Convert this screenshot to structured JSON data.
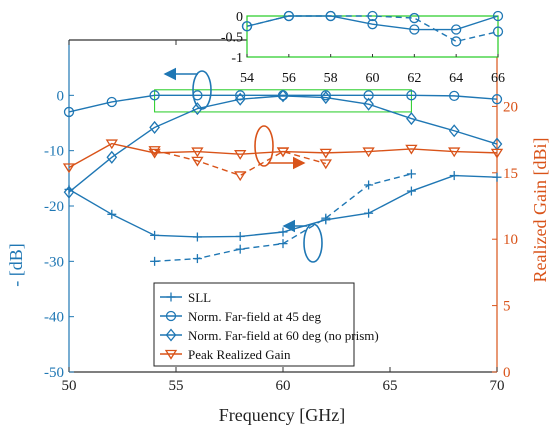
{
  "chart_data": {
    "type": "line",
    "xlabel": "Frequency [GHz]",
    "ylabel_left": "- [dB]",
    "ylabel_right": "Realized Gain [dBi]",
    "xlim": [
      50,
      70
    ],
    "ylim_left": [
      -50,
      10
    ],
    "ylim_right": [
      0,
      25
    ],
    "x_ticks": [
      "50",
      "55",
      "60",
      "65",
      "70"
    ],
    "y_left_ticks": [
      "0",
      "-10",
      "-20",
      "-30",
      "-40",
      "-50"
    ],
    "y_right_ticks": [
      "20",
      "15",
      "10",
      "5",
      "0"
    ],
    "grid": false,
    "legend_position": "bottom-center",
    "series": [
      {
        "name": "SLL",
        "axis": "left",
        "marker": "plus",
        "color": "#1f77b4",
        "style": "solid",
        "x": [
          50,
          52,
          54,
          56,
          58,
          60,
          62,
          64,
          66,
          68,
          70
        ],
        "y": [
          -17,
          -21.5,
          -25.3,
          -25.6,
          -25.5,
          -24.7,
          -22.5,
          -21.3,
          -17.3,
          -14.5,
          -14.8
        ]
      },
      {
        "name": "",
        "axis": "left",
        "marker": "plus",
        "color": "#1f77b4",
        "style": "dashed",
        "x": [
          54,
          56,
          58,
          60,
          62,
          64,
          66
        ],
        "y": [
          -30,
          -29.5,
          -27.8,
          -26.8,
          -22.2,
          -16.2,
          -14.2
        ]
      },
      {
        "name": "Norm. Far-field at 45 deg",
        "axis": "left",
        "marker": "circle",
        "color": "#1f77b4",
        "style": "solid",
        "x": [
          50,
          52,
          54,
          56,
          58,
          60,
          62,
          64,
          66,
          68,
          70
        ],
        "y": [
          -3,
          -1.2,
          0,
          0,
          0,
          0,
          0,
          0,
          0,
          -0.1,
          -0.7
        ]
      },
      {
        "name": "Norm. Far-field at 60 deg (no prism)",
        "axis": "left",
        "marker": "diamond",
        "color": "#1f77b4",
        "style": "solid",
        "x": [
          50,
          52,
          54,
          56,
          58,
          60,
          62,
          64,
          66,
          68,
          70
        ],
        "y": [
          -17.5,
          -11.2,
          -5.8,
          -2.4,
          -0.7,
          -0.1,
          -0.4,
          -1.6,
          -4.2,
          -6.4,
          -8.8
        ]
      },
      {
        "name": "Peak Realized Gain",
        "axis": "right",
        "marker": "triangle-down",
        "color": "#d95319",
        "style": "solid",
        "x": [
          50,
          52,
          54,
          56,
          58,
          60,
          62,
          64,
          66,
          68,
          70
        ],
        "y": [
          15.4,
          17.2,
          16.5,
          16.6,
          16.4,
          16.6,
          16.5,
          16.6,
          16.8,
          16.6,
          16.5
        ]
      },
      {
        "name": "",
        "axis": "right",
        "marker": "triangle-down",
        "color": "#d95319",
        "style": "dashed",
        "x": [
          54,
          56,
          58,
          60,
          62
        ],
        "y": [
          16.7,
          15.9,
          14.8,
          16.6,
          15.7
        ]
      }
    ],
    "inset": {
      "xlim": [
        54,
        66
      ],
      "ylim": [
        -1,
        0
      ],
      "x_ticks": [
        "54",
        "56",
        "58",
        "60",
        "62",
        "64",
        "66"
      ],
      "y_ticks": [
        "0",
        "-0.5",
        "-1"
      ],
      "series": [
        {
          "style": "solid",
          "x": [
            54,
            56,
            58,
            60,
            62,
            64,
            66
          ],
          "y": [
            -0.25,
            0,
            0,
            -0.2,
            -0.33,
            -0.33,
            0
          ]
        },
        {
          "style": "dashed",
          "x": [
            54,
            56,
            58,
            60,
            62,
            64,
            66
          ],
          "y": [
            -0.25,
            0,
            0,
            0,
            -0.05,
            -0.62,
            -0.38
          ]
        }
      ]
    },
    "legend": [
      {
        "label": "SLL",
        "marker": "plus",
        "color": "#1f77b4"
      },
      {
        "label": "Norm. Far-field at 45 deg",
        "marker": "circle",
        "color": "#1f77b4"
      },
      {
        "label": "Norm. Far-field at 60 deg (no prism)",
        "marker": "diamond",
        "color": "#1f77b4"
      },
      {
        "label": "Peak Realized Gain",
        "marker": "triangle-down",
        "color": "#d95319"
      }
    ]
  }
}
